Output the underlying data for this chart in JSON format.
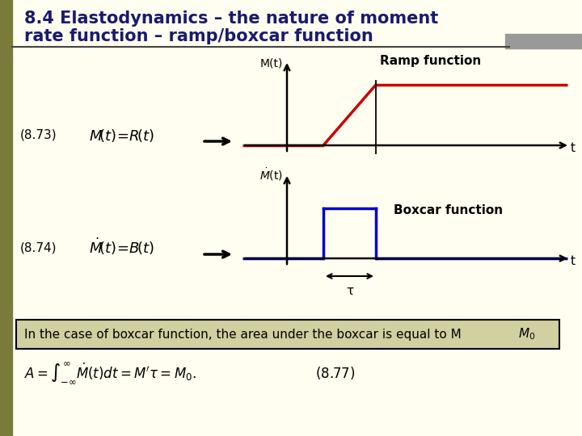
{
  "bg_color": "#FFFEF0",
  "title_line1": "8.4 Elastodynamics – the nature of moment",
  "title_line2": "rate function – ramp/boxcar function",
  "title_color": "#1a1a6e",
  "title_fontsize": 15,
  "separator_color": "#444444",
  "gray_rect_color": "#999999",
  "ramp_color": "#cc0000",
  "boxcar_color": "#0000cc",
  "axis_color": "#000000",
  "label_color": "#000000",
  "eq873_text": "(8.73)",
  "eq874_text": "(8.74)",
  "ramp_label": "Ramp function",
  "boxcar_label": "Boxcar function",
  "Mt_label": "M(t)",
  "t_label": "t",
  "tau_label": "τ",
  "note_text": "In the case of boxcar function, the area under the boxcar is equal to M",
  "left_bar_color": "#7a7a3a"
}
